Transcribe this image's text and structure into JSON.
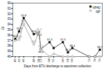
{
  "chart_data": {
    "type": "line",
    "x": [
      406,
      422,
      441,
      483,
      504,
      512,
      548,
      565,
      603,
      624,
      642,
      712,
      736,
      756
    ],
    "xlim": [
      396,
      766
    ],
    "xticks": [
      406,
      422,
      441,
      483,
      504,
      512,
      548,
      565,
      603,
      624,
      642,
      712,
      736,
      756
    ],
    "ylim": [
      40,
      30
    ],
    "yticks": [
      30,
      31,
      32,
      33,
      34,
      35,
      36,
      37,
      38,
      39,
      40
    ],
    "xlabel": "Days from ETU discharge to specimen collection",
    "ylabel": "Ct",
    "legend": "upper right",
    "data_labels": true,
    "series": [
      {
        "name": "VP40",
        "color": "#000000",
        "marker": "square",
        "values": [
          36.7,
          35.3,
          32.8,
          35.8,
          35.4,
          38.6,
          37.3,
          38.4,
          37.3,
          39.2,
          38.4,
          40,
          40,
          38.7
        ],
        "value_labels": [
          "36.7",
          "35.3",
          "32.8",
          "35.8",
          "35.4",
          "38.6",
          "37.3",
          null,
          "37.3",
          "39.2",
          "38.4",
          null,
          null,
          "38.7"
        ]
      },
      {
        "name": "NP",
        "color": "#888888",
        "marker": "square-open",
        "values": [
          37.0,
          36.8,
          33.9,
          37.7,
          35.4,
          38.6,
          40,
          39.5,
          40,
          40,
          40,
          40,
          40,
          40
        ],
        "value_labels": [
          null,
          "36.8",
          "33.9",
          "37.7",
          "35.4",
          "38.6",
          null,
          null,
          null,
          null,
          null,
          null,
          null,
          null
        ]
      }
    ]
  }
}
